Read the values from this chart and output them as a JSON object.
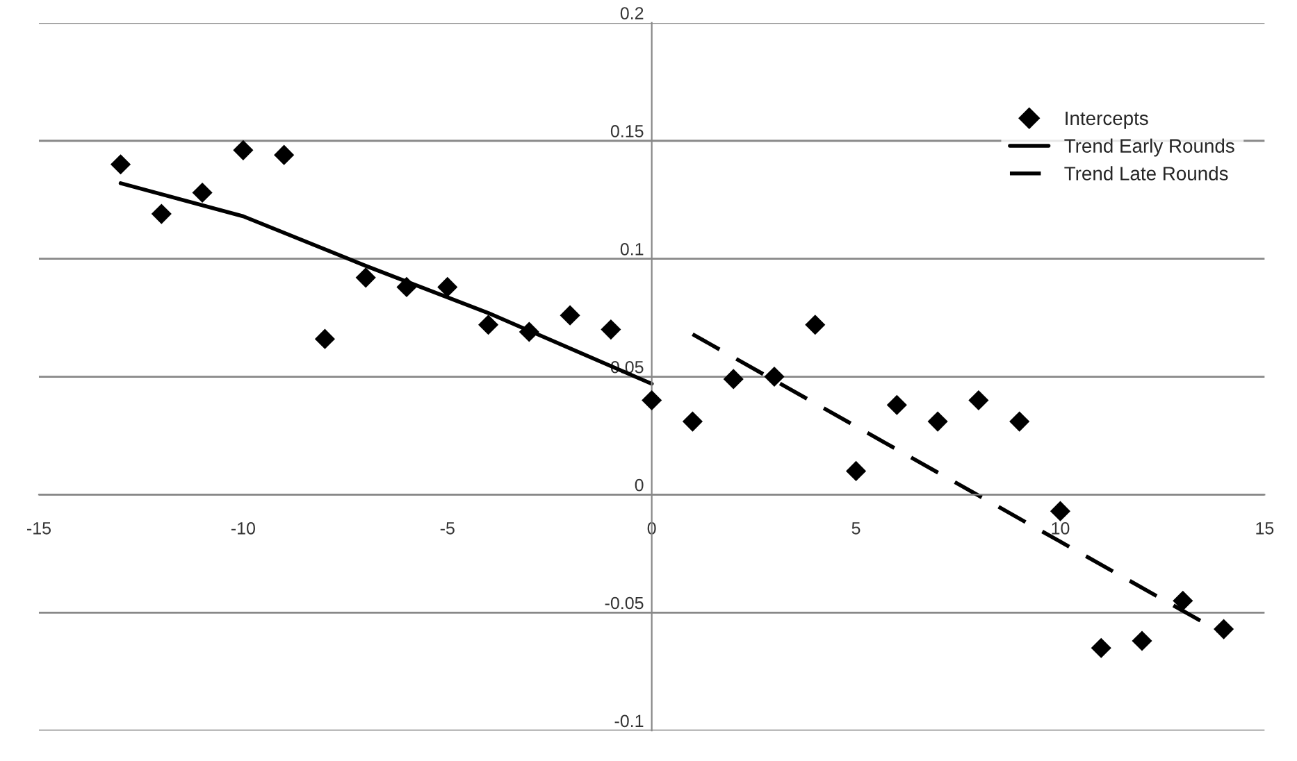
{
  "chart_data": {
    "type": "scatter",
    "xlim": [
      -15,
      15
    ],
    "xticks": [
      -15,
      -10,
      -5,
      0,
      5,
      10,
      15
    ],
    "ylim": [
      -0.1,
      0.2
    ],
    "yticks": [
      -0.1,
      -0.05,
      0,
      0.05,
      0.1,
      0.15,
      0.2
    ],
    "grid": "y",
    "legend": "top right",
    "series": [
      {
        "name": "Intercepts",
        "type": "scatter",
        "marker": "diamond",
        "color": "#000000",
        "x": [
          -13,
          -12,
          -11,
          -10,
          -9,
          -8,
          -7,
          -6,
          -5,
          -4,
          -3,
          -2,
          -1,
          0,
          1,
          2,
          3,
          4,
          5,
          6,
          7,
          8,
          9,
          10,
          11,
          12,
          13,
          14
        ],
        "values": [
          0.14,
          0.119,
          0.128,
          0.146,
          0.144,
          0.066,
          0.092,
          0.088,
          0.088,
          0.072,
          0.069,
          0.076,
          0.07,
          0.04,
          0.031,
          0.049,
          0.05,
          0.072,
          0.01,
          0.038,
          0.031,
          0.04,
          0.031,
          -0.007,
          -0.065,
          -0.062,
          -0.045,
          -0.057
        ]
      },
      {
        "name": "Trend Early Rounds",
        "type": "line",
        "line_style": "solid",
        "color": "#000000",
        "x": [
          -13,
          -10,
          -7,
          -4,
          0
        ],
        "values": [
          0.132,
          0.118,
          0.097,
          0.077,
          0.047
        ]
      },
      {
        "name": "Trend Late Rounds",
        "type": "line",
        "line_style": "dashed",
        "color": "#000000",
        "x": [
          1,
          14
        ],
        "values": [
          0.068,
          -0.059
        ]
      }
    ]
  }
}
